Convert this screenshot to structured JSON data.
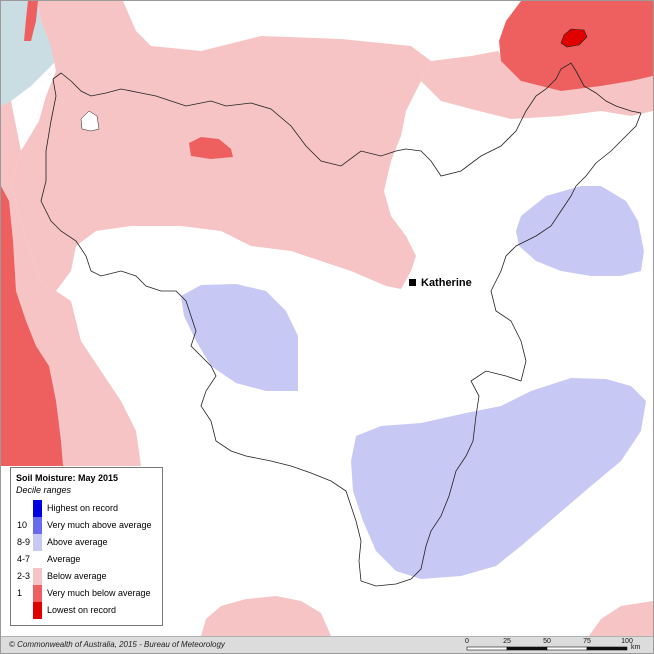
{
  "map": {
    "town": {
      "name": "Katherine"
    }
  },
  "legend": {
    "title": "Soil Moisture: May 2015",
    "subtitle": "Decile ranges",
    "items": [
      {
        "code": "",
        "label": "Highest on record",
        "color": "#0000e0"
      },
      {
        "code": "10",
        "label": "Very much above average",
        "color": "#6a6aee"
      },
      {
        "code": "8-9",
        "label": "Above average",
        "color": "#c8c8f4"
      },
      {
        "code": "4-7",
        "label": "Average",
        "color": "#ffffff"
      },
      {
        "code": "2-3",
        "label": "Below average",
        "color": "#f6c4c4"
      },
      {
        "code": "1",
        "label": "Very much below average",
        "color": "#ee6060"
      },
      {
        "code": "",
        "label": "Lowest on record",
        "color": "#e00000"
      }
    ]
  },
  "footer": {
    "copyright": "© Commonwealth of Australia, 2015 - Bureau of Meteorology",
    "scale": {
      "ticks": [
        "0",
        "25",
        "50",
        "75",
        "100"
      ],
      "unit": "km"
    }
  },
  "colors": {
    "sea": "#c9dde3",
    "below_average": "#f6c4c4",
    "very_much_below_average": "#ee6060",
    "lowest_on_record": "#e00000",
    "above_average": "#c8c8f4",
    "average": "#ffffff",
    "boundary": "#222222"
  }
}
